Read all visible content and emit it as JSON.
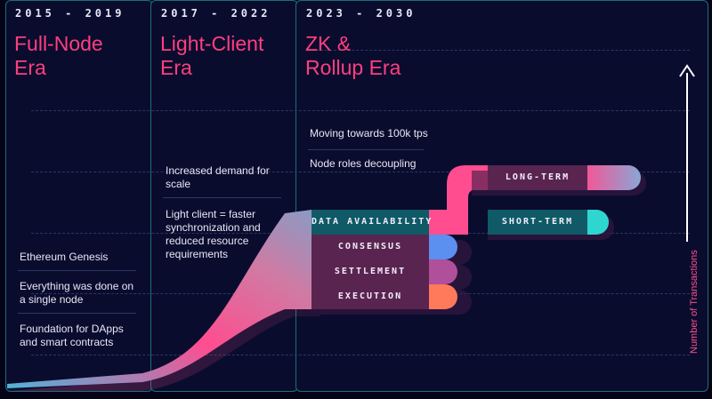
{
  "eras": [
    {
      "years": "2015 - 2019",
      "title_lines": [
        "Full-Node",
        "Era"
      ],
      "notes": [
        "Ethereum Genesis",
        "Everything was done on a single node",
        "Foundation for DApps and smart contracts"
      ]
    },
    {
      "years": "2017 - 2022",
      "title_lines": [
        "Light-Client",
        "Era"
      ],
      "notes": [
        "Increased demand for scale",
        "Light client = faster synchronization and reduced resource requirements"
      ]
    },
    {
      "years": "2023 - 2030",
      "title_lines": [
        "ZK &",
        "Rollup Era"
      ],
      "notes": [
        "Moving towards 100k tps",
        "Node roles decoupling"
      ]
    }
  ],
  "layers": {
    "data_availability": "DATA AVAILABILITY",
    "consensus": "CONSENSUS",
    "settlement": "SETTLEMENT",
    "execution": "EXECUTION",
    "long_term": "LONG-TERM",
    "short_term": "SHORT-TERM"
  },
  "axis": {
    "label": "Number of Transactions"
  },
  "colors": {
    "background": "#050317",
    "panel": "#0a0c2e",
    "panel_border": "#1c6f73",
    "title": "#ff3f7e",
    "data_availability": "#0f5a66",
    "consensus": "#5b8ff0",
    "settlement": "#b0509a",
    "execution": "#ff7a5a",
    "layer_bar": "#5a2450",
    "short_term_tip": "#2fd6cf"
  }
}
